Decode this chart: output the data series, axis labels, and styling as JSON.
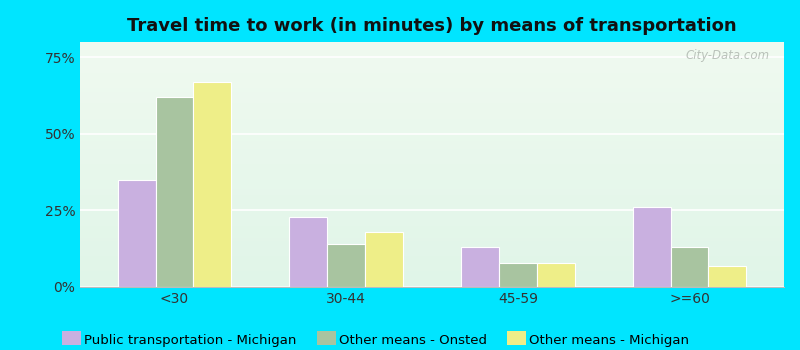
{
  "title": "Travel time to work (in minutes) by means of transportation",
  "categories": [
    "<30",
    "30-44",
    "45-59",
    ">=60"
  ],
  "series": {
    "Public transportation - Michigan": [
      35,
      23,
      13,
      26
    ],
    "Other means - Onsted": [
      62,
      14,
      8,
      13
    ],
    "Other means - Michigan": [
      67,
      18,
      8,
      7
    ]
  },
  "colors": {
    "Public transportation - Michigan": "#c9b0e0",
    "Other means - Onsted": "#a8c4a0",
    "Other means - Michigan": "#eeee88"
  },
  "yticks": [
    0,
    25,
    50,
    75
  ],
  "ylim": [
    0,
    80
  ],
  "chart_bg_top": "#f0faf0",
  "chart_bg_bottom": "#e0f5e8",
  "outer_background": "#00e5ff",
  "title_fontsize": 13,
  "tick_fontsize": 10,
  "legend_fontsize": 9.5,
  "bar_width": 0.22,
  "watermark": "City-Data.com"
}
